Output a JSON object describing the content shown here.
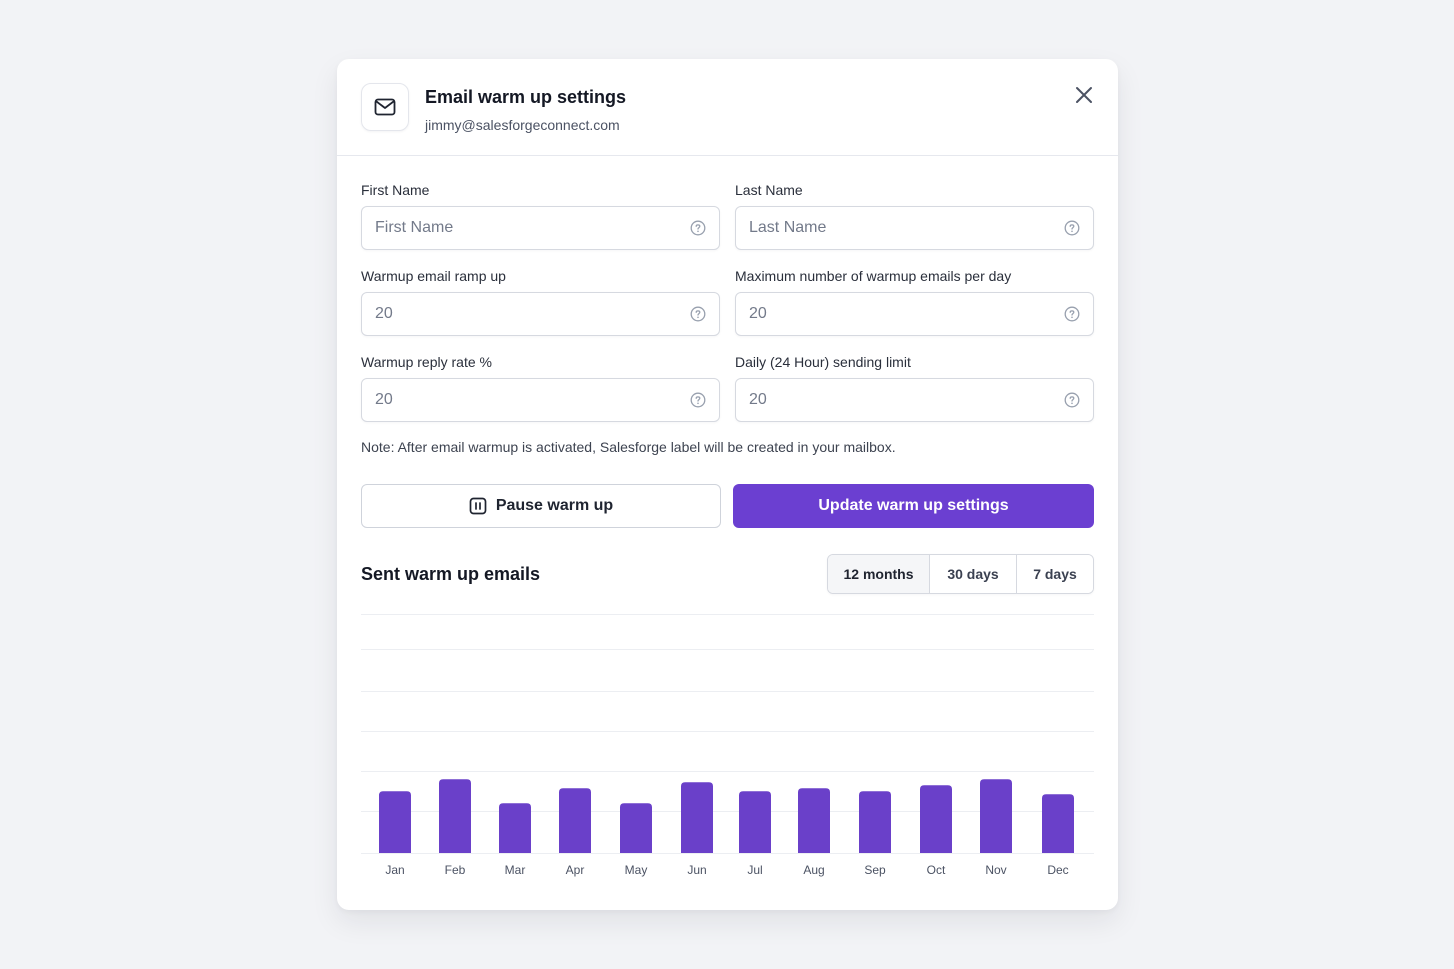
{
  "dialog": {
    "title": "Email warm up settings",
    "email": "jimmy@salesforgeconnect.com",
    "icon": "mail-icon",
    "close_icon": "close-icon"
  },
  "form": {
    "first_name": {
      "label": "First Name",
      "placeholder": "First Name",
      "value": ""
    },
    "last_name": {
      "label": "Last Name",
      "placeholder": "Last Name",
      "value": ""
    },
    "ramp_up": {
      "label": "Warmup email ramp up",
      "value": "20"
    },
    "max_per_day": {
      "label": "Maximum number of warmup emails per day",
      "value": "20"
    },
    "reply_rate": {
      "label": "Warmup reply rate %",
      "value": "20"
    },
    "daily_limit": {
      "label": "Daily (24 Hour) sending limit",
      "value": "20"
    },
    "help_icon": "help-circle-icon"
  },
  "note": "Note: After email warmup is activated, Salesforge label will be created in your mailbox.",
  "actions": {
    "pause_label": "Pause warm up",
    "pause_icon": "pause-icon",
    "update_label": "Update warm up settings"
  },
  "chart_section": {
    "title": "Sent warm up emails",
    "ranges": [
      "12 months",
      "30 days",
      "7 days"
    ],
    "active_range": "12 months"
  },
  "colors": {
    "accent": "#6b3fd1",
    "bar": "#6a40c9",
    "gridline": "#eceef2"
  },
  "chart_data": {
    "type": "bar",
    "categories": [
      "Jan",
      "Feb",
      "Mar",
      "Apr",
      "May",
      "Jun",
      "Jul",
      "Aug",
      "Sep",
      "Oct",
      "Nov",
      "Dec"
    ],
    "values": [
      62,
      74,
      50,
      65,
      50,
      71,
      62,
      65,
      62,
      68,
      74,
      59
    ],
    "ylim": [
      0,
      240
    ],
    "grid": true,
    "title": "",
    "xlabel": "",
    "ylabel": ""
  }
}
